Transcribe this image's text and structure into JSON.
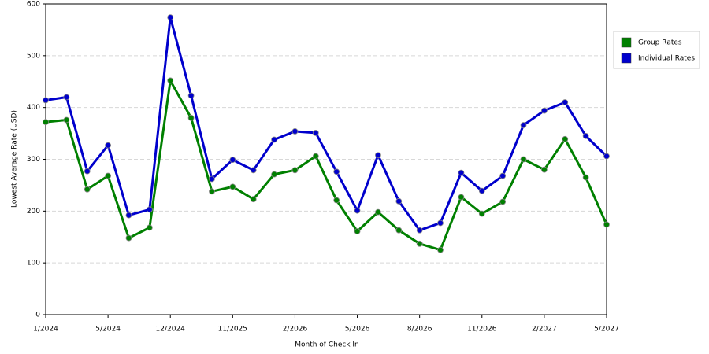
{
  "chart_data": {
    "type": "line",
    "x_label": "Month of Check In",
    "y_label": "Lowest Average Rate (USD)",
    "categories": [
      "1/2024",
      null,
      null,
      "5/2024",
      null,
      null,
      "12/2024",
      null,
      null,
      "11/2025",
      null,
      null,
      "2/2026",
      null,
      null,
      "5/2026",
      null,
      null,
      "8/2026",
      null,
      null,
      "11/2026",
      null,
      null,
      "2/2027",
      null,
      null,
      "5/2027"
    ],
    "series": [
      {
        "name": "Group Rates",
        "color": "#008000",
        "values": [
          372,
          376,
          242,
          268,
          148,
          168,
          452,
          380,
          238,
          247,
          223,
          271,
          279,
          306,
          221,
          161,
          198,
          163,
          137,
          125,
          227,
          195,
          218,
          300,
          280,
          339,
          265,
          174
        ]
      },
      {
        "name": "Individual Rates",
        "color": "#0000cc",
        "values": [
          414,
          420,
          277,
          327,
          192,
          203,
          574,
          423,
          262,
          299,
          279,
          338,
          354,
          351,
          276,
          201,
          308,
          219,
          163,
          177,
          274,
          239,
          268,
          366,
          394,
          410,
          345,
          306
        ]
      }
    ],
    "ylim": [
      0,
      600
    ],
    "yticks": [
      0,
      100,
      200,
      300,
      400,
      500,
      600
    ],
    "grid": true,
    "legend": "right"
  }
}
